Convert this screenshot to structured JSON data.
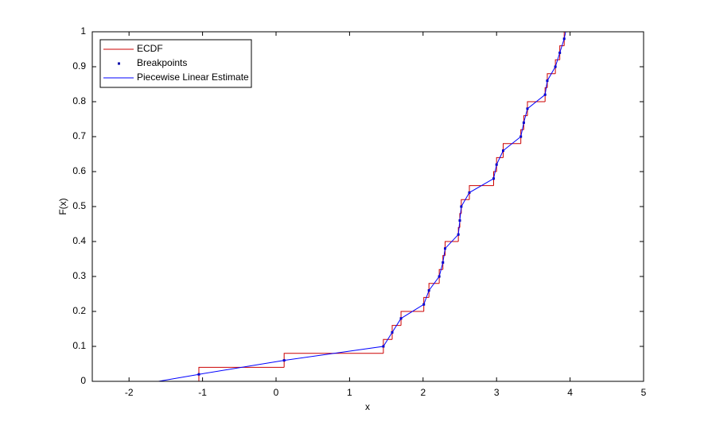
{
  "chart_data": {
    "type": "ecdf",
    "xlabel": "x",
    "ylabel": "F(x)",
    "xlim": [
      -2.5,
      5
    ],
    "ylim": [
      0,
      1
    ],
    "xticks": [
      -2,
      -1,
      0,
      1,
      2,
      3,
      4,
      5
    ],
    "yticks": [
      0,
      0.1,
      0.2,
      0.3,
      0.4,
      0.5,
      0.6,
      0.7,
      0.8,
      0.9,
      1
    ],
    "legend": "upper left",
    "series": [
      {
        "name": "ECDF",
        "color": "#cc0000",
        "style": "stairs",
        "x": [
          -1.05,
          0.11,
          1.46,
          1.58,
          1.7,
          2.01,
          2.08,
          2.22,
          2.27,
          2.3,
          2.48,
          2.5,
          2.52,
          2.63,
          2.96,
          3.0,
          3.09,
          3.33,
          3.37,
          3.42,
          3.66,
          3.69,
          3.8,
          3.86,
          3.92
        ],
        "values": [
          0.04,
          0.08,
          0.12,
          0.16,
          0.2,
          0.24,
          0.28,
          0.32,
          0.36,
          0.4,
          0.44,
          0.48,
          0.52,
          0.56,
          0.6,
          0.64,
          0.68,
          0.72,
          0.76,
          0.8,
          0.84,
          0.88,
          0.92,
          0.96,
          1.0
        ]
      },
      {
        "name": "Breakpoints",
        "color": "#0000aa",
        "style": "points",
        "x": [
          -1.05,
          0.11,
          1.46,
          1.58,
          1.7,
          2.01,
          2.08,
          2.22,
          2.27,
          2.3,
          2.48,
          2.5,
          2.52,
          2.63,
          2.96,
          3.0,
          3.09,
          3.33,
          3.37,
          3.42,
          3.66,
          3.69,
          3.8,
          3.86,
          3.92
        ],
        "values": [
          0.02,
          0.06,
          0.1,
          0.14,
          0.18,
          0.22,
          0.26,
          0.3,
          0.34,
          0.38,
          0.42,
          0.46,
          0.5,
          0.54,
          0.58,
          0.62,
          0.66,
          0.7,
          0.74,
          0.78,
          0.82,
          0.86,
          0.9,
          0.94,
          0.98
        ]
      },
      {
        "name": "Piecewise Linear Estimate",
        "color": "#0000ff",
        "style": "line",
        "x": [
          -1.6,
          -1.05,
          0.11,
          1.46,
          1.58,
          1.7,
          2.01,
          2.08,
          2.22,
          2.27,
          2.3,
          2.48,
          2.5,
          2.52,
          2.63,
          2.96,
          3.0,
          3.09,
          3.33,
          3.37,
          3.42,
          3.66,
          3.69,
          3.8,
          3.86,
          3.92,
          3.94
        ],
        "values": [
          0,
          0.02,
          0.06,
          0.1,
          0.14,
          0.18,
          0.22,
          0.26,
          0.3,
          0.34,
          0.38,
          0.42,
          0.46,
          0.5,
          0.54,
          0.58,
          0.62,
          0.66,
          0.7,
          0.74,
          0.78,
          0.82,
          0.86,
          0.9,
          0.94,
          0.98,
          1
        ]
      }
    ]
  }
}
